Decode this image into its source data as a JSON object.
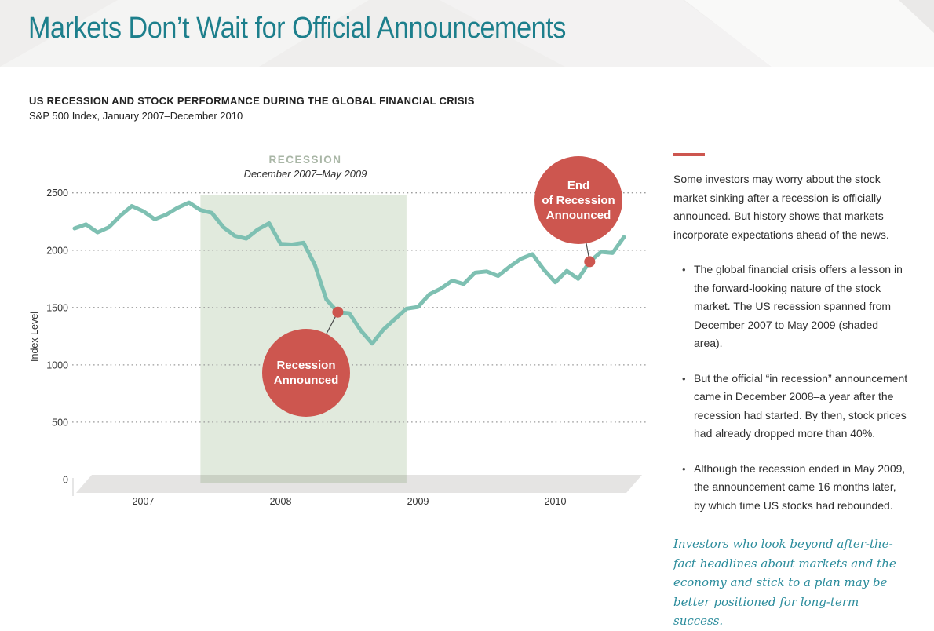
{
  "header": {
    "title": "Markets Don’t Wait for Official Announcements"
  },
  "colors": {
    "title_teal": "#1d7f8c",
    "line_teal": "#7ec0b2",
    "coral_accent": "#cd564f",
    "recession_shade": "#e1eadd",
    "recession_label_gray_green": "#a9b6a6",
    "header_band": "#efeeed"
  },
  "chart": {
    "heading": "US RECESSION AND STOCK PERFORMANCE DURING THE GLOBAL FINANCIAL CRISIS",
    "subheading": "S&P 500 Index, January 2007–December 2010",
    "recession_label": "RECESSION",
    "recession_dates": "December 2007–May 2009",
    "ylabel": "Index Level"
  },
  "chart_data": {
    "type": "line",
    "title": "US RECESSION AND STOCK PERFORMANCE DURING THE GLOBAL FINANCIAL CRISIS",
    "subtitle": "S&P 500 Index, January 2007–December 2010",
    "ylabel": "Index Level",
    "ylim": [
      0,
      2500
    ],
    "y_ticks": [
      0,
      500,
      1000,
      1500,
      2000,
      2500
    ],
    "x_ticks": [
      "2007",
      "2008",
      "2009",
      "2010"
    ],
    "grid": "dotted horizontal gridlines",
    "line_color": "#7ec0b2",
    "months": [
      "2007-01",
      "2007-02",
      "2007-03",
      "2007-04",
      "2007-05",
      "2007-06",
      "2007-07",
      "2007-08",
      "2007-09",
      "2007-10",
      "2007-11",
      "2007-12",
      "2008-01",
      "2008-02",
      "2008-03",
      "2008-04",
      "2008-05",
      "2008-06",
      "2008-07",
      "2008-08",
      "2008-09",
      "2008-10",
      "2008-11",
      "2008-12",
      "2009-01",
      "2009-02",
      "2009-03",
      "2009-04",
      "2009-05",
      "2009-06",
      "2009-07",
      "2009-08",
      "2009-09",
      "2009-10",
      "2009-11",
      "2009-12",
      "2010-01",
      "2010-02",
      "2010-03",
      "2010-04",
      "2010-05",
      "2010-06",
      "2010-07",
      "2010-08",
      "2010-09",
      "2010-10",
      "2010-11",
      "2010-12",
      "2011-01"
    ],
    "values": [
      2190,
      2225,
      2155,
      2200,
      2300,
      2385,
      2340,
      2270,
      2310,
      2370,
      2415,
      2350,
      2325,
      2200,
      2125,
      2100,
      2180,
      2235,
      2055,
      2050,
      2065,
      1870,
      1570,
      1460,
      1450,
      1300,
      1185,
      1310,
      1400,
      1490,
      1505,
      1615,
      1665,
      1735,
      1705,
      1805,
      1815,
      1775,
      1855,
      1925,
      1965,
      1830,
      1720,
      1820,
      1750,
      1900,
      1985,
      1975,
      2115
    ],
    "shaded_region": {
      "label": "RECESSION",
      "sub_label": "December 2007–May 2009",
      "from_month": "2007-12",
      "to_month": "2009-06",
      "from_index": 11,
      "to_index": 29,
      "color": "#e1eadd"
    },
    "annotations": [
      {
        "label": "Recession Announced",
        "bubble_text": "Recession\nAnnounced",
        "month": "2008-12",
        "point_index": 23,
        "value": 1460
      },
      {
        "label": "End of Recession Announced",
        "bubble_text": "End\nof Recession\nAnnounced",
        "month": "2010-10",
        "point_index": 45,
        "value": 1900
      }
    ]
  },
  "sidebar": {
    "intro": "Some investors may worry about the stock market sinking after a recession is officially announced. But history shows that markets incorporate expectations ahead of the news.",
    "bullets": [
      "The global financial crisis offers a lesson in the forward-looking nature of the stock market. The US recession spanned from December 2007 to May 2009 (shaded area).",
      "But the official “in recession” announcement came in December 2008–a year after the recession had started. By then, stock prices had already dropped more than 40%.",
      "Although the recession ended in May 2009, the announcement came 16 months later, by which time US stocks had rebounded."
    ],
    "conclusion": "Investors who look beyond after-the-fact headlines about markets and the economy and stick to a plan may be better positioned for long-term success."
  }
}
